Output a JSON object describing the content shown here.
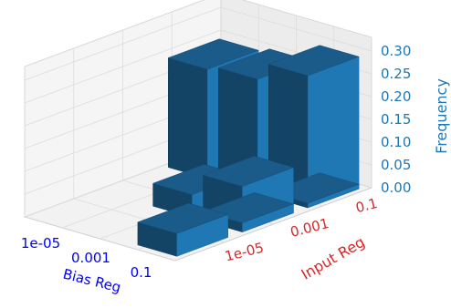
{
  "chart_data": {
    "type": "bar3d",
    "title": "",
    "x_axis": {
      "label": "Bias Reg",
      "categories": [
        "1e-05",
        "0.001",
        "0.1"
      ],
      "color": "#0000ff"
    },
    "y_axis": {
      "label": "Input Reg",
      "categories": [
        "1e-05",
        "0.001",
        "0.1"
      ],
      "color": "#d62728"
    },
    "z_axis": {
      "label": "Frequency",
      "ticks": [
        "0.00",
        "0.05",
        "0.10",
        "0.15",
        "0.20",
        "0.25",
        "0.30"
      ],
      "zlim": [
        0,
        0.33
      ],
      "color": "#1f77b4"
    },
    "bar_color": "#1f77b4",
    "bars": [
      {
        "bias": "1e-05",
        "input": "1e-05",
        "value": 0.0
      },
      {
        "bias": "1e-05",
        "input": "0.001",
        "value": 0.0
      },
      {
        "bias": "1e-05",
        "input": "0.1",
        "value": 0.2
      },
      {
        "bias": "0.001",
        "input": "1e-05",
        "value": 0.0
      },
      {
        "bias": "0.001",
        "input": "0.001",
        "value": 0.05
      },
      {
        "bias": "0.001",
        "input": "0.1",
        "value": 0.25
      },
      {
        "bias": "0.1",
        "input": "1e-05",
        "value": 0.05
      },
      {
        "bias": "0.1",
        "input": "0.001",
        "value": 0.1
      },
      {
        "bias": "0.1",
        "input": "0.1",
        "value": 0.29
      }
    ],
    "extra_bars": [
      {
        "bias": "1e-05",
        "input": "0.1",
        "value": 0.24
      },
      {
        "bias": "0.1",
        "input": "0.001",
        "value": 0.02
      },
      {
        "bias": "0.1",
        "input": "0.1",
        "value": 0.01
      }
    ]
  }
}
